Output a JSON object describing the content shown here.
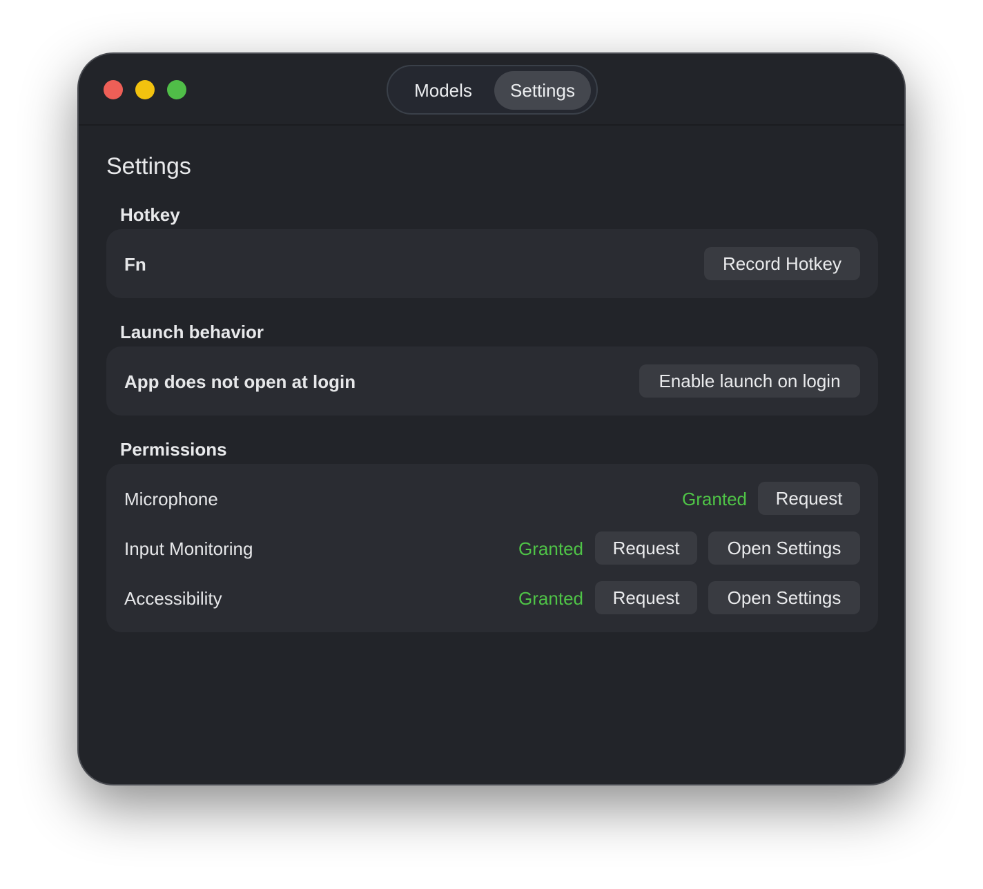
{
  "window": {
    "traffic_lights": {
      "close": "#ee5f57",
      "minimize": "#f2c20f",
      "zoom": "#50be48"
    },
    "tabs": [
      {
        "label": "Models",
        "active": false
      },
      {
        "label": "Settings",
        "active": true
      }
    ]
  },
  "page_title": "Settings",
  "hotkey": {
    "heading": "Hotkey",
    "value": "Fn",
    "button": "Record Hotkey"
  },
  "launch": {
    "heading": "Launch behavior",
    "status": "App does not open at login",
    "button": "Enable launch on login"
  },
  "permissions": {
    "heading": "Permissions",
    "status_color": "#4fc447",
    "items": [
      {
        "name": "Microphone",
        "status": "Granted",
        "request": "Request"
      },
      {
        "name": "Input Monitoring",
        "status": "Granted",
        "request": "Request",
        "open": "Open Settings"
      },
      {
        "name": "Accessibility",
        "status": "Granted",
        "request": "Request",
        "open": "Open Settings"
      }
    ]
  }
}
